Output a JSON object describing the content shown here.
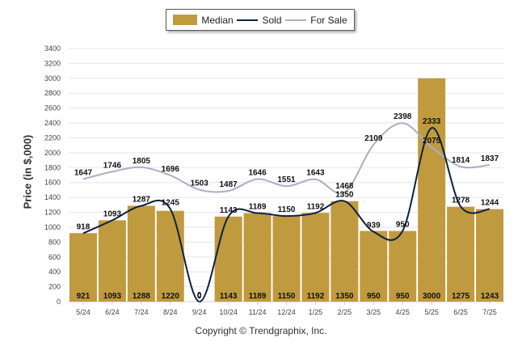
{
  "chart_data": {
    "type": "bar",
    "categories": [
      "5/24",
      "6/24",
      "7/24",
      "8/24",
      "9/24",
      "10/24",
      "11/24",
      "12/24",
      "1/25",
      "2/25",
      "3/25",
      "4/25",
      "5/25",
      "6/25",
      "7/25"
    ],
    "series": [
      {
        "name": "Median",
        "type": "bar",
        "color": "#c09a3e",
        "values": [
          921,
          1093,
          1288,
          1220,
          0,
          1143,
          1189,
          1150,
          1192,
          1350,
          950,
          950,
          3000,
          1275,
          1243
        ]
      },
      {
        "name": "Sold",
        "type": "line",
        "color": "#0d2240",
        "values": [
          918,
          1093,
          1287,
          1245,
          0,
          1143,
          1189,
          1150,
          1192,
          1350,
          939,
          950,
          2333,
          1278,
          1244
        ]
      },
      {
        "name": "For Sale",
        "type": "line",
        "color": "#a8b0c4",
        "values": [
          1647,
          1746,
          1805,
          1696,
          1503,
          1487,
          1646,
          1551,
          1643,
          1468,
          2109,
          2398,
          2075,
          1814,
          1837
        ]
      }
    ],
    "ylabel": "Price (in $,000)",
    "ylim": [
      0,
      3400
    ],
    "yticks": [
      0,
      200,
      400,
      600,
      800,
      1000,
      1200,
      1400,
      1600,
      1800,
      2000,
      2200,
      2400,
      2600,
      2800,
      3000,
      3200,
      3400
    ],
    "grid": true,
    "legend": "top-center",
    "footer": "Copyright © Trendgraphix, Inc."
  }
}
